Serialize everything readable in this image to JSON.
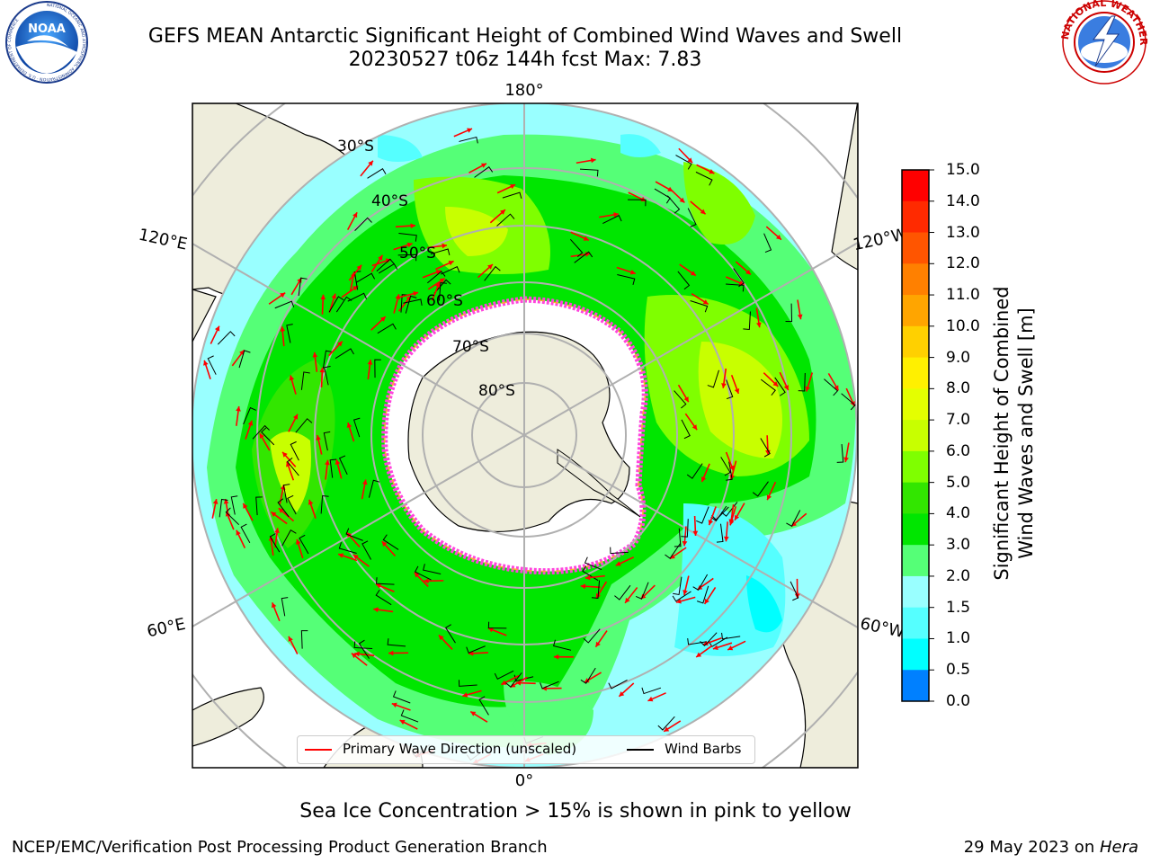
{
  "header": {
    "title_line1": "GEFS MEAN Antarctic Significant Height of Combined Wind Waves and Swell",
    "title_line2": "20230527 t06z 144h fcst   Max: 7.83"
  },
  "map": {
    "projection": "south-polar-stereographic",
    "lon_labels": {
      "top": "180°",
      "bottom": "0°",
      "upper_left": "120°E",
      "upper_right": "120°W",
      "lower_left": "60°E",
      "lower_right": "60°W"
    },
    "lat_labels": [
      "30°S",
      "40°S",
      "50°S",
      "60°S",
      "70°S",
      "80°S"
    ],
    "colors": {
      "land": "#eeeddc",
      "ice": "#ffffff",
      "ice_edge": "#ff44dd",
      "ice_edge_low": "#ffaa33",
      "grid": "#b0b0b0",
      "wave_arrow": "#ff0000",
      "wind_barb": "#000000"
    },
    "legend": {
      "wave": "Primary Wave Direction (unscaled)",
      "wind": "Wind Barbs"
    }
  },
  "colorbar": {
    "label_line1": "Significant Height of Combined",
    "label_line2": "Wind Waves and Swell [m]",
    "ticks": [
      "15.0",
      "14.0",
      "13.0",
      "12.0",
      "11.0",
      "10.0",
      "9.0",
      "8.0",
      "7.0",
      "6.0",
      "5.0",
      "4.0",
      "3.0",
      "2.0",
      "1.5",
      "1.0",
      "0.5",
      "0.0"
    ],
    "levels_from_top": [
      "#ff0000",
      "#ff2a00",
      "#ff5500",
      "#ff8000",
      "#ffa500",
      "#ffd000",
      "#fff000",
      "#e4ff00",
      "#c8ff00",
      "#7fff00",
      "#32e600",
      "#00e600",
      "#55ff77",
      "#99ffff",
      "#55ffff",
      "#00ffff",
      "#0080ff",
      "#0000ff"
    ]
  },
  "note": {
    "sea_ice": "Sea Ice Concentration > 15% is shown in pink to yellow"
  },
  "footer": {
    "left": "NCEP/EMC/Verification Post Processing Product Generation Branch",
    "right_prefix": "29 May 2023 on ",
    "right_host": "Hera"
  },
  "logos": {
    "noaa_text": "NOAA",
    "noaa_ring": "NATIONAL OCEANIC AND ATMOSPHERIC ADMINISTRATION · U.S. DEPARTMENT OF COMMERCE",
    "nws_ring": "NATIONAL WEATHER SERVICE"
  }
}
